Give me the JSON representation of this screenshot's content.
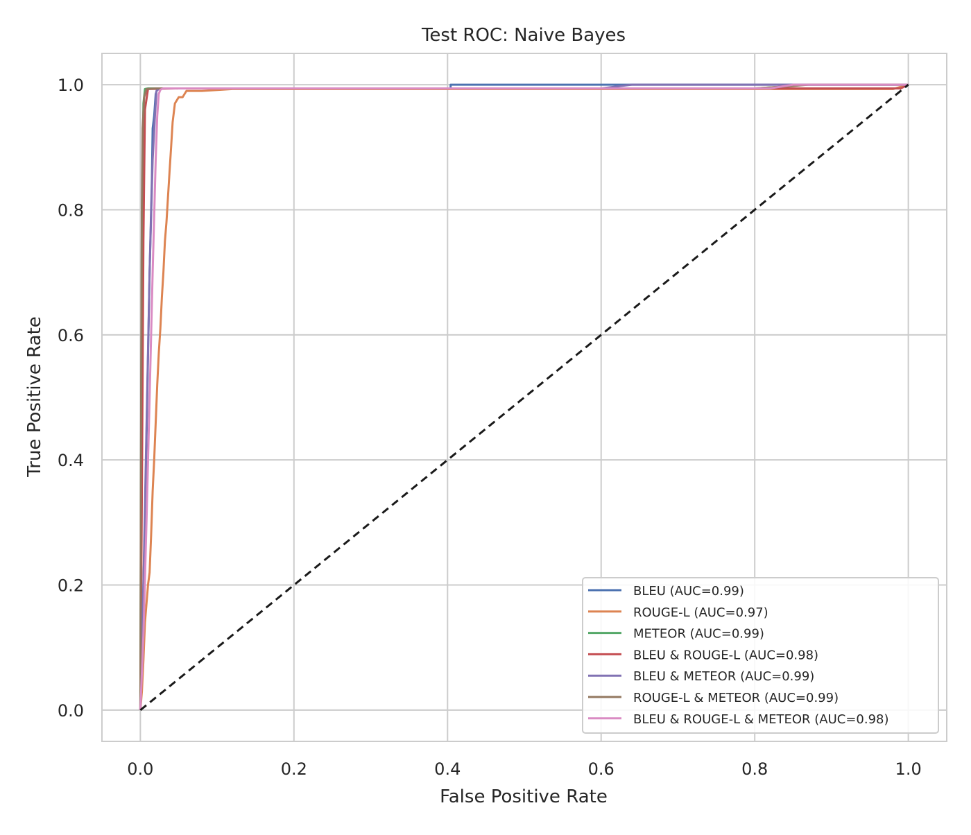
{
  "chart_data": {
    "type": "line",
    "title": "Test ROC: Naive Bayes",
    "xlabel": "False Positive Rate",
    "ylabel": "True Positive Rate",
    "xlim": [
      -0.05,
      1.05
    ],
    "ylim": [
      -0.05,
      1.05
    ],
    "xticks": [
      0.0,
      0.2,
      0.4,
      0.6,
      0.8,
      1.0
    ],
    "yticks": [
      0.0,
      0.2,
      0.4,
      0.6,
      0.8,
      1.0
    ],
    "xtick_labels": [
      "0.0",
      "0.2",
      "0.4",
      "0.6",
      "0.8",
      "1.0"
    ],
    "ytick_labels": [
      "0.0",
      "0.2",
      "0.4",
      "0.6",
      "0.8",
      "1.0"
    ],
    "grid": true,
    "legend_position": "lower-right",
    "series": [
      {
        "name": "BLEU (AUC=0.99)",
        "color": "#4C72B0",
        "x": [
          0.0,
          0.003,
          0.006,
          0.009,
          0.012,
          0.015,
          0.016,
          0.018,
          0.02,
          0.022,
          0.024,
          0.028,
          0.04,
          0.1,
          0.3,
          0.404,
          0.404,
          0.6,
          0.8,
          1.0
        ],
        "y": [
          0.0,
          0.15,
          0.3,
          0.5,
          0.7,
          0.85,
          0.93,
          0.95,
          0.985,
          0.993,
          0.994,
          0.994,
          0.994,
          0.994,
          0.994,
          0.994,
          1.0,
          1.0,
          1.0,
          1.0
        ]
      },
      {
        "name": "ROUGE-L (AUC=0.97)",
        "color": "#DD8452",
        "x": [
          0.0,
          0.002,
          0.004,
          0.006,
          0.008,
          0.01,
          0.012,
          0.014,
          0.016,
          0.018,
          0.02,
          0.022,
          0.024,
          0.026,
          0.028,
          0.03,
          0.032,
          0.034,
          0.036,
          0.038,
          0.04,
          0.042,
          0.045,
          0.05,
          0.055,
          0.06,
          0.08,
          0.12,
          0.3,
          0.6,
          0.8,
          0.98,
          1.0
        ],
        "y": [
          0.0,
          0.03,
          0.08,
          0.14,
          0.17,
          0.2,
          0.22,
          0.28,
          0.35,
          0.4,
          0.46,
          0.52,
          0.57,
          0.61,
          0.66,
          0.7,
          0.75,
          0.78,
          0.82,
          0.86,
          0.9,
          0.94,
          0.97,
          0.98,
          0.98,
          0.99,
          0.99,
          0.993,
          0.993,
          0.993,
          0.993,
          0.993,
          1.0
        ]
      },
      {
        "name": "METEOR (AUC=0.99)",
        "color": "#55A868",
        "x": [
          0.0,
          0.001,
          0.002,
          0.003,
          0.004,
          0.006,
          0.01,
          0.05,
          0.2,
          0.5,
          0.8,
          0.84,
          0.86,
          1.0
        ],
        "y": [
          0.0,
          0.45,
          0.79,
          0.88,
          0.97,
          0.993,
          0.994,
          0.994,
          0.994,
          0.994,
          0.994,
          0.997,
          1.0,
          1.0
        ]
      },
      {
        "name": "BLEU & ROUGE-L (AUC=0.98)",
        "color": "#C44E52",
        "x": [
          0.0,
          0.002,
          0.004,
          0.006,
          0.01,
          0.05,
          0.2,
          0.5,
          0.8,
          0.95,
          0.99,
          1.0
        ],
        "y": [
          0.0,
          0.35,
          0.75,
          0.96,
          0.993,
          0.994,
          0.994,
          0.994,
          0.994,
          0.994,
          0.994,
          1.0
        ]
      },
      {
        "name": "BLEU & METEOR (AUC=0.99)",
        "color": "#8172B3",
        "x": [
          0.0,
          0.004,
          0.008,
          0.012,
          0.016,
          0.019,
          0.021,
          0.024,
          0.03,
          0.1,
          0.4,
          0.6,
          0.64,
          0.8,
          0.84,
          1.0
        ],
        "y": [
          0.0,
          0.2,
          0.45,
          0.7,
          0.88,
          0.95,
          0.99,
          0.993,
          0.994,
          0.994,
          0.994,
          0.994,
          1.0,
          1.0,
          1.0,
          1.0
        ]
      },
      {
        "name": "ROUGE-L & METEOR (AUC=0.99)",
        "color": "#937860",
        "x": [
          0.0,
          0.001,
          0.002,
          0.003,
          0.005,
          0.008,
          0.02,
          0.1,
          0.4,
          0.8,
          0.84,
          0.87,
          1.0
        ],
        "y": [
          0.0,
          0.5,
          0.8,
          0.93,
          0.98,
          0.993,
          0.994,
          0.994,
          0.994,
          0.994,
          0.997,
          1.0,
          1.0
        ]
      },
      {
        "name": "BLEU & ROUGE-L & METEOR (AUC=0.98)",
        "color": "#DA8BC3",
        "x": [
          0.0,
          0.004,
          0.008,
          0.012,
          0.016,
          0.02,
          0.022,
          0.024,
          0.026,
          0.03,
          0.05,
          0.1,
          0.4,
          0.7,
          0.82,
          0.85,
          0.9,
          1.0
        ],
        "y": [
          0.0,
          0.12,
          0.3,
          0.5,
          0.7,
          0.88,
          0.95,
          0.985,
          0.992,
          0.994,
          0.994,
          0.994,
          0.994,
          0.994,
          0.994,
          1.0,
          1.0,
          1.0
        ]
      }
    ],
    "reference_line": {
      "x": [
        0.0,
        1.0
      ],
      "y": [
        0.0,
        1.0
      ],
      "color": "#1a1a1a",
      "style": "dashed"
    }
  }
}
